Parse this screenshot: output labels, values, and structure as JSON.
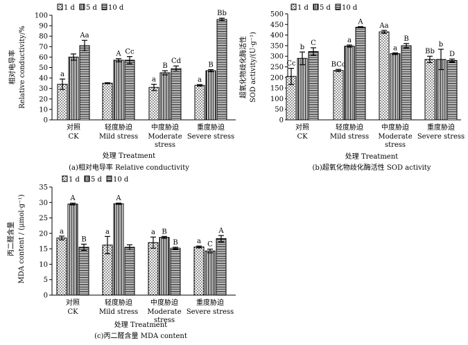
{
  "chart_data": [
    {
      "type": "bar",
      "caption": "(a)相对电导率 Relative conductivity",
      "ylabel_zh": "相对电导率",
      "ylabel_en": "Relative conductivity/%",
      "xlabel": "处理 Treatment",
      "ylim": [
        0,
        100
      ],
      "yticks": [
        0,
        10,
        20,
        30,
        40,
        50,
        60,
        70,
        80,
        90,
        100
      ],
      "legend": [
        "1 d",
        "5 d",
        "10 d"
      ],
      "categories": [
        {
          "zh": "对照",
          "en": [
            "CK"
          ]
        },
        {
          "zh": "轻度胁迫",
          "en": [
            "Mild stress"
          ]
        },
        {
          "zh": "中度胁迫",
          "en": [
            "Moderate",
            "stress"
          ]
        },
        {
          "zh": "重度胁迫",
          "en": [
            "Severe stress"
          ]
        }
      ],
      "series": [
        {
          "name": "1 d",
          "values": [
            34,
            35,
            31,
            33
          ],
          "errors": [
            5,
            0.5,
            3,
            0.7
          ],
          "labels": [
            "a",
            "",
            "a",
            "a"
          ]
        },
        {
          "name": "5 d",
          "values": [
            60,
            57,
            45,
            47
          ],
          "errors": [
            3,
            1.5,
            2,
            1
          ],
          "labels": [
            "",
            "A",
            "B",
            "B"
          ]
        },
        {
          "name": "10 d",
          "values": [
            71,
            57,
            49,
            96
          ],
          "errors": [
            5,
            3.5,
            2.5,
            1.2
          ],
          "labels": [
            "Aa",
            "Cc",
            "Cd",
            "Bb"
          ]
        }
      ]
    },
    {
      "type": "bar",
      "caption": "(b)超氧化物歧化酶活性 SOD activity",
      "ylabel_zh": "超氧化物歧化酶活性",
      "ylabel_en": "SOD activity/(U·g⁻¹)",
      "xlabel": "处理 Treatment",
      "ylim": [
        0,
        500
      ],
      "yticks": [
        0,
        50,
        100,
        150,
        200,
        250,
        300,
        350,
        400,
        450,
        500
      ],
      "legend": [
        "1 d",
        "5 d",
        "10 d"
      ],
      "categories": [
        {
          "zh": "对照",
          "en": [
            "CK"
          ]
        },
        {
          "zh": "轻度胁迫",
          "en": [
            "Mild stress"
          ]
        },
        {
          "zh": "中度胁迫",
          "en": [
            "Moderate",
            "stress"
          ]
        },
        {
          "zh": "重度胁迫",
          "en": [
            "Severe stress"
          ]
        }
      ],
      "series": [
        {
          "name": "1 d",
          "values": [
            205,
            233,
            415,
            285
          ],
          "errors": [
            38,
            5,
            7,
            15
          ],
          "labels": [
            "Cc",
            "BCc",
            "Aa",
            "Bb"
          ]
        },
        {
          "name": "5 d",
          "values": [
            290,
            348,
            312,
            285
          ],
          "errors": [
            30,
            5,
            4,
            48
          ],
          "labels": [
            "b",
            "a",
            "a",
            "b"
          ]
        },
        {
          "name": "10 d",
          "values": [
            322,
            437,
            350,
            280
          ],
          "errors": [
            18,
            3,
            10,
            7
          ],
          "labels": [
            "C",
            "A",
            "B",
            "D"
          ]
        }
      ]
    },
    {
      "type": "bar",
      "caption": "(c)丙二醛含量 MDA content",
      "ylabel_zh": "丙二醛含量",
      "ylabel_en": "MDA content / (μmol·g⁻¹)",
      "xlabel": "处理 Treatment",
      "ylim": [
        0,
        35
      ],
      "yticks": [
        0,
        5,
        10,
        15,
        20,
        25,
        30,
        35
      ],
      "legend": [
        "1 d",
        "5 d",
        "10 d"
      ],
      "categories": [
        {
          "zh": "对照",
          "en": [
            "CK"
          ]
        },
        {
          "zh": "轻度胁迫",
          "en": [
            "Mild stress"
          ]
        },
        {
          "zh": "中度胁迫",
          "en": [
            "Moderate",
            "stress"
          ]
        },
        {
          "zh": "重度胁迫",
          "en": [
            "Severe stress"
          ]
        }
      ],
      "series": [
        {
          "name": "1 d",
          "values": [
            18.5,
            16.2,
            17,
            15.6
          ],
          "errors": [
            0.6,
            2.8,
            1.8,
            0.3
          ],
          "labels": [
            "a",
            "a",
            "a",
            "a"
          ]
        },
        {
          "name": "5 d",
          "values": [
            29.5,
            29.6,
            18.7,
            14.3
          ],
          "errors": [
            0.3,
            0.2,
            0.3,
            0.6
          ],
          "labels": [
            "A",
            "A",
            "B",
            "C"
          ]
        },
        {
          "name": "10 d",
          "values": [
            15.5,
            15.5,
            15.2,
            18.3
          ],
          "errors": [
            1,
            0.8,
            0.3,
            1
          ],
          "labels": [
            "B",
            "",
            "B",
            "A"
          ]
        }
      ]
    }
  ]
}
